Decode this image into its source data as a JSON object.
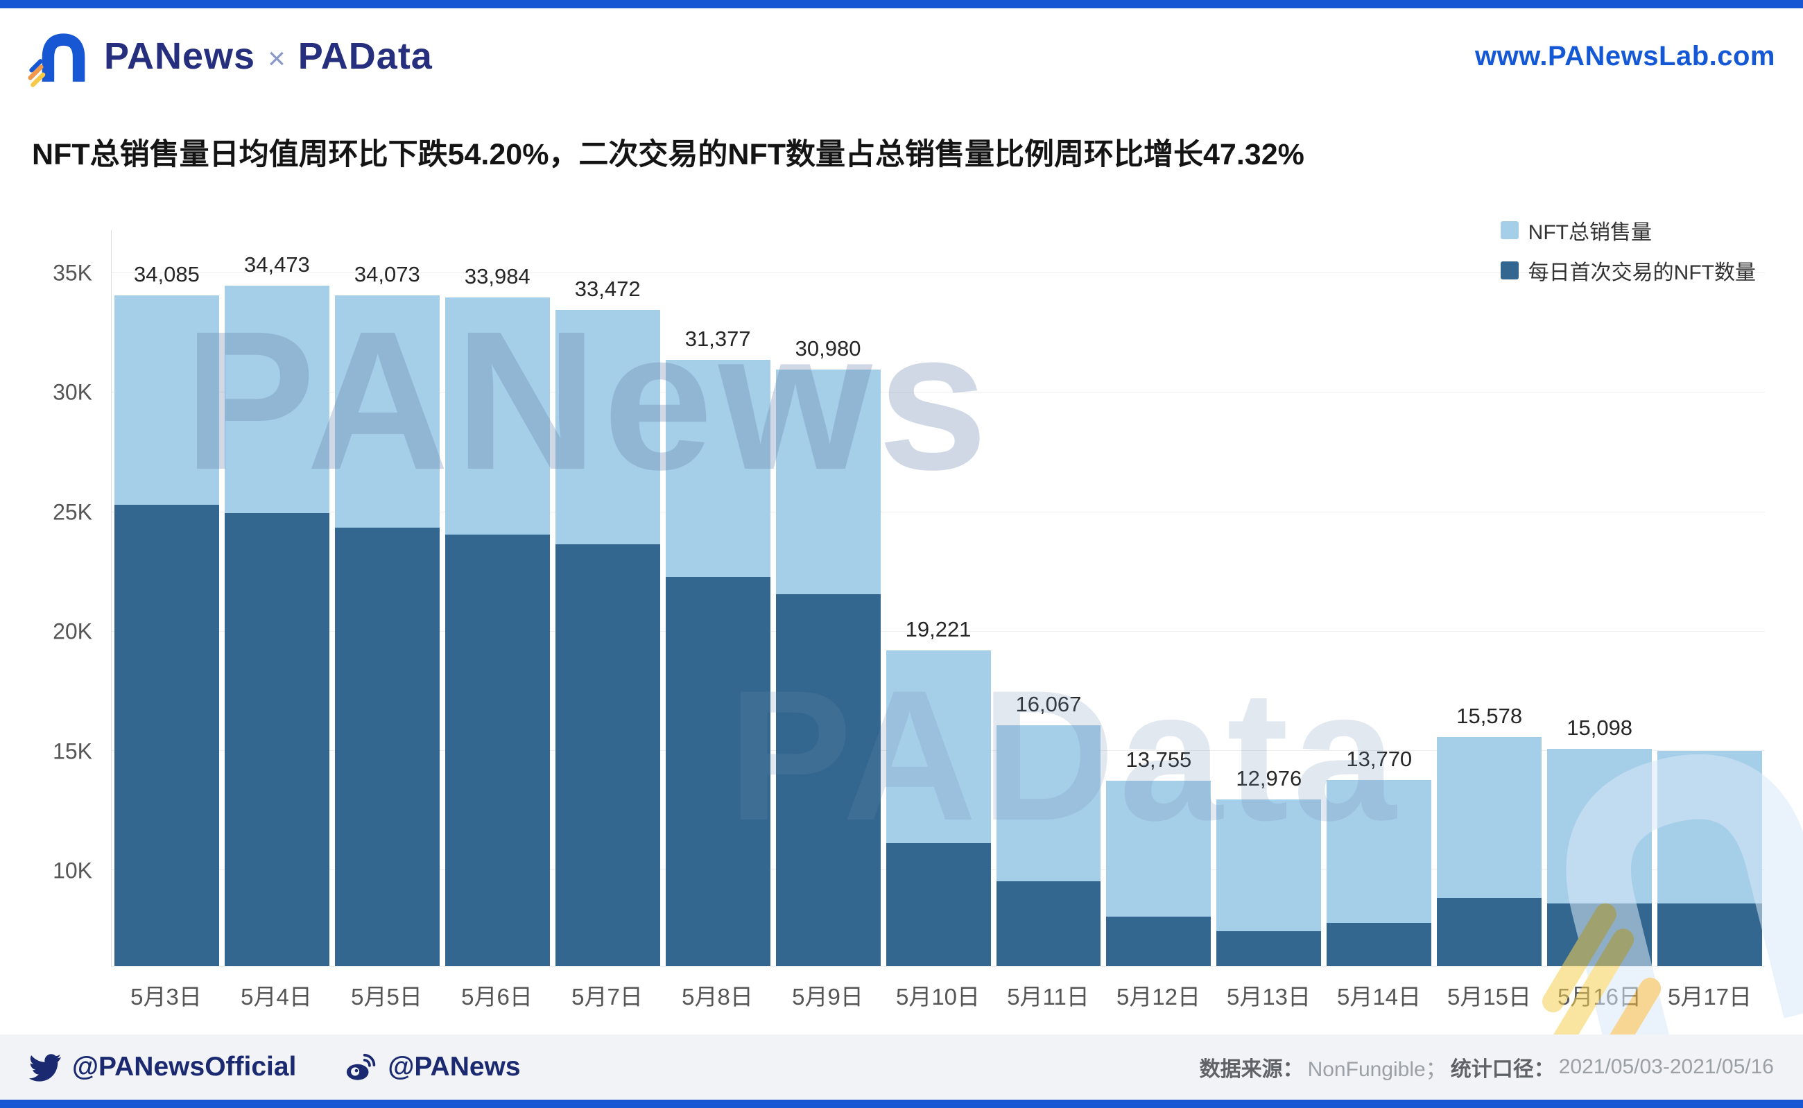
{
  "header": {
    "brand_primary": "PANews",
    "brand_separator": "×",
    "brand_secondary": "PAData",
    "website": "www.PANewsLab.com"
  },
  "title": "NFT总销售量日均值周环比下跌54.20%，二次交易的NFT数量占总销售量比例周环比增长47.32%",
  "chart_data": {
    "type": "bar",
    "subtype": "overlay-stacked",
    "categories": [
      "5月3日",
      "5月4日",
      "5月5日",
      "5月6日",
      "5月7日",
      "5月8日",
      "5月9日",
      "5月10日",
      "5月11日",
      "5月12日",
      "5月13日",
      "5月14日",
      "5月15日",
      "5月16日",
      "5月17日"
    ],
    "series": [
      {
        "name": "NFT总销售量",
        "color": "#a5cee9",
        "values": [
          34085,
          34473,
          34073,
          33984,
          33472,
          31377,
          30980,
          19221,
          16067,
          13755,
          12976,
          13770,
          15578,
          15098,
          15000
        ]
      },
      {
        "name": "每日首次交易的NFT数量",
        "color": "#34678f",
        "values": [
          25300,
          24950,
          24350,
          24050,
          23650,
          22300,
          21550,
          11150,
          9550,
          8050,
          7450,
          7800,
          8850,
          8600,
          8600
        ]
      }
    ],
    "labels": [
      "34,085",
      "34,473",
      "34,073",
      "33,984",
      "33,472",
      "31,377",
      "30,980",
      "19,221",
      "16,067",
      "13,755",
      "12,976",
      "13,770",
      "15,578",
      "15,098",
      ""
    ],
    "ylim": [
      6000,
      36800
    ],
    "yticks": [
      10000,
      15000,
      20000,
      25000,
      30000,
      35000
    ],
    "ytick_labels": [
      "10K",
      "15K",
      "20K",
      "25K",
      "30K",
      "35K"
    ],
    "grid": true,
    "legend_position": "top-right",
    "title": "",
    "xlabel": "",
    "ylabel": ""
  },
  "watermarks": {
    "primary": "PANews",
    "secondary": "PAData"
  },
  "footer": {
    "twitter_handle": "@PANewsOfficial",
    "weibo_handle": "@PANews",
    "source_label": "数据来源：",
    "source_value": "NonFungible；",
    "period_label": "统计口径：",
    "period_value": "2021/05/03-2021/05/16"
  },
  "colors": {
    "accent_blue": "#1757d3",
    "brand_navy": "#252f7d",
    "bar_light": "#a5cee9",
    "bar_dark": "#34678f",
    "footer_bg": "#f1f3f6"
  }
}
